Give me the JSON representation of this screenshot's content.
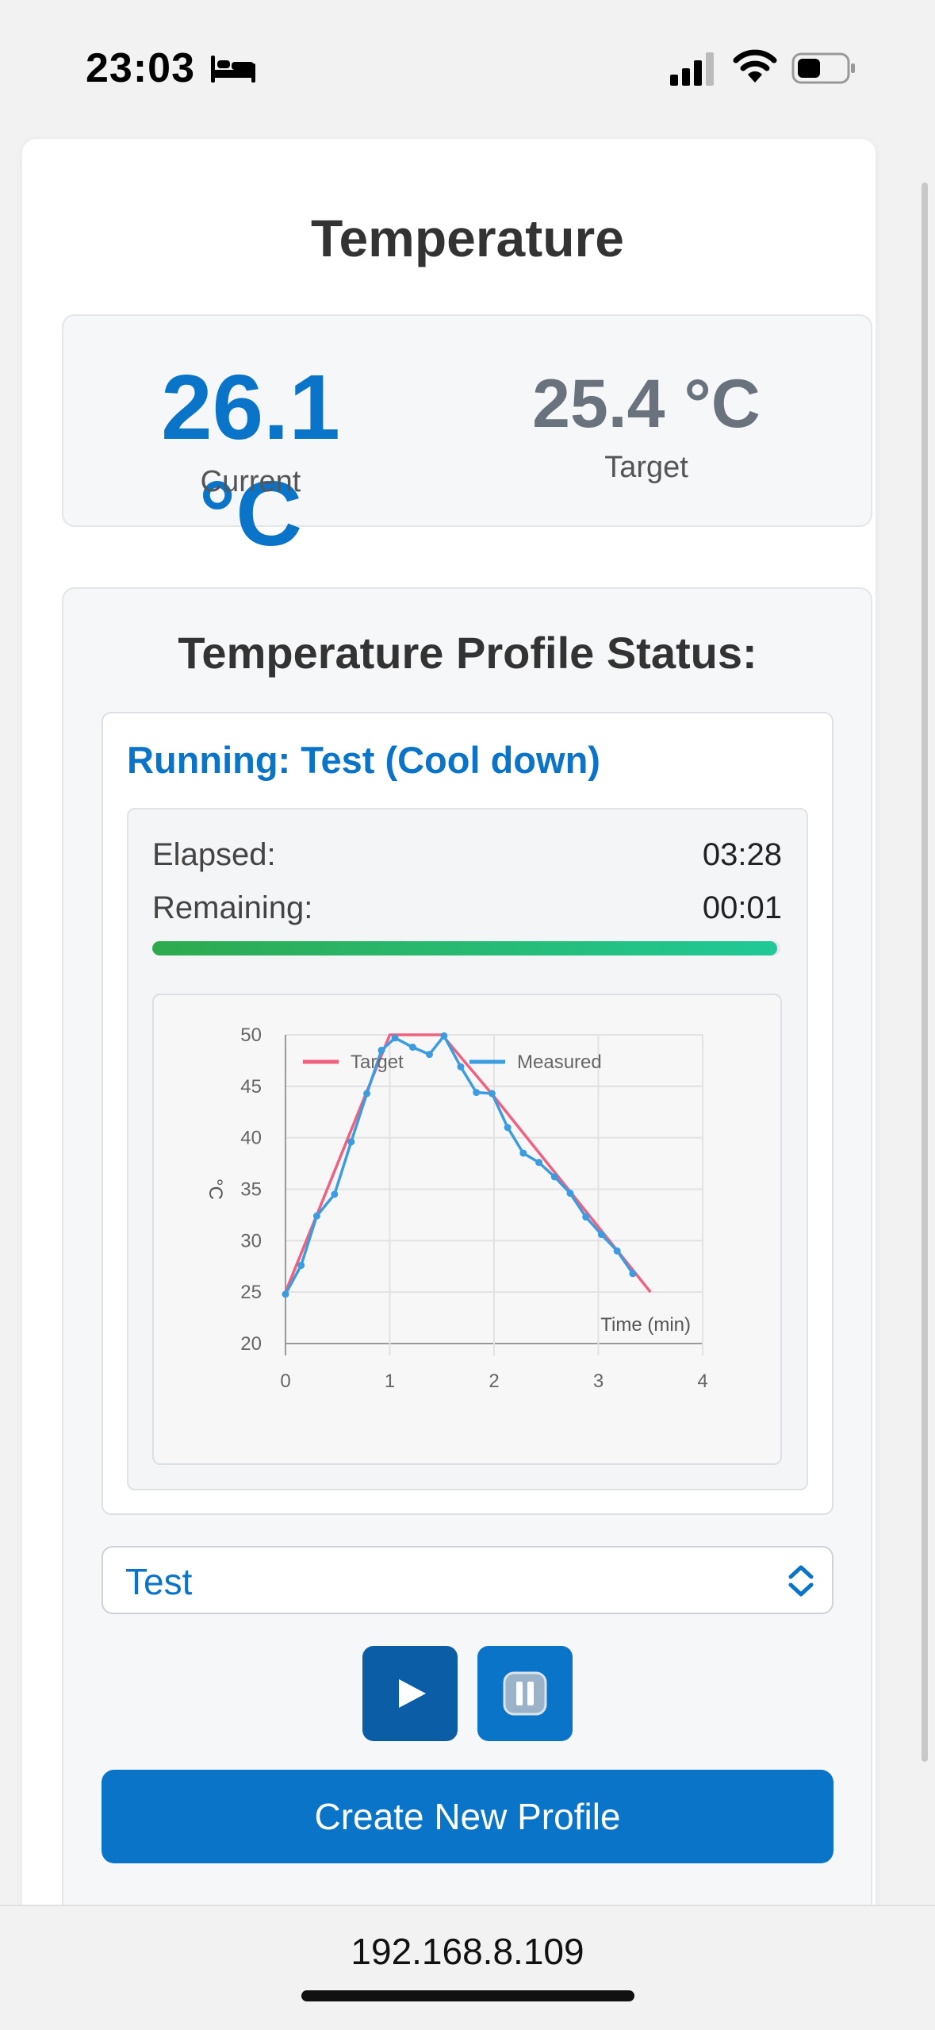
{
  "status_bar": {
    "time": "23:03"
  },
  "header": {
    "title": "Temperature"
  },
  "temperature": {
    "current_value": "26.1 °C",
    "current_label": "Current",
    "target_value": "25.4 °C",
    "target_label": "Target"
  },
  "profile_status": {
    "heading": "Temperature Profile Status:",
    "running_label": "Running: Test (Cool down)",
    "elapsed_label": "Elapsed:",
    "elapsed_value": "03:28",
    "remaining_label": "Remaining:",
    "remaining_value": "00:01",
    "progress_fraction": 0.995
  },
  "chart_data": {
    "type": "line",
    "xlabel": "Time (min)",
    "ylabel": "°C",
    "xlim": [
      0,
      4
    ],
    "ylim": [
      20,
      50
    ],
    "x_ticks": [
      "0",
      "1",
      "2",
      "3",
      "4"
    ],
    "y_ticks": [
      "20",
      "25",
      "30",
      "35",
      "40",
      "45",
      "50"
    ],
    "grid": true,
    "legend_position": "top",
    "series": [
      {
        "name": "Target",
        "color": "#f0607f",
        "points": [
          [
            0,
            25
          ],
          [
            1,
            50
          ],
          [
            1.5,
            50
          ],
          [
            2,
            44
          ],
          [
            3.5,
            25
          ]
        ]
      },
      {
        "name": "Measured",
        "color": "#3b9de0",
        "points": [
          [
            0,
            24.8
          ],
          [
            0.15,
            27.6
          ],
          [
            0.3,
            32.4
          ],
          [
            0.47,
            34.5
          ],
          [
            0.63,
            39.6
          ],
          [
            0.78,
            44.3
          ],
          [
            0.92,
            48.5
          ],
          [
            1.05,
            49.7
          ],
          [
            1.22,
            48.8
          ],
          [
            1.38,
            48.1
          ],
          [
            1.52,
            49.9
          ],
          [
            1.68,
            46.9
          ],
          [
            1.83,
            44.4
          ],
          [
            1.98,
            44.3
          ],
          [
            2.13,
            41
          ],
          [
            2.28,
            38.5
          ],
          [
            2.43,
            37.6
          ],
          [
            2.58,
            36.2
          ],
          [
            2.73,
            34.6
          ],
          [
            2.88,
            32.3
          ],
          [
            3.03,
            30.6
          ],
          [
            3.18,
            29
          ],
          [
            3.33,
            26.8
          ]
        ]
      }
    ]
  },
  "controls": {
    "profile_select_value": "Test",
    "create_button_label": "Create New Profile"
  },
  "browser": {
    "url": "192.168.8.109"
  }
}
